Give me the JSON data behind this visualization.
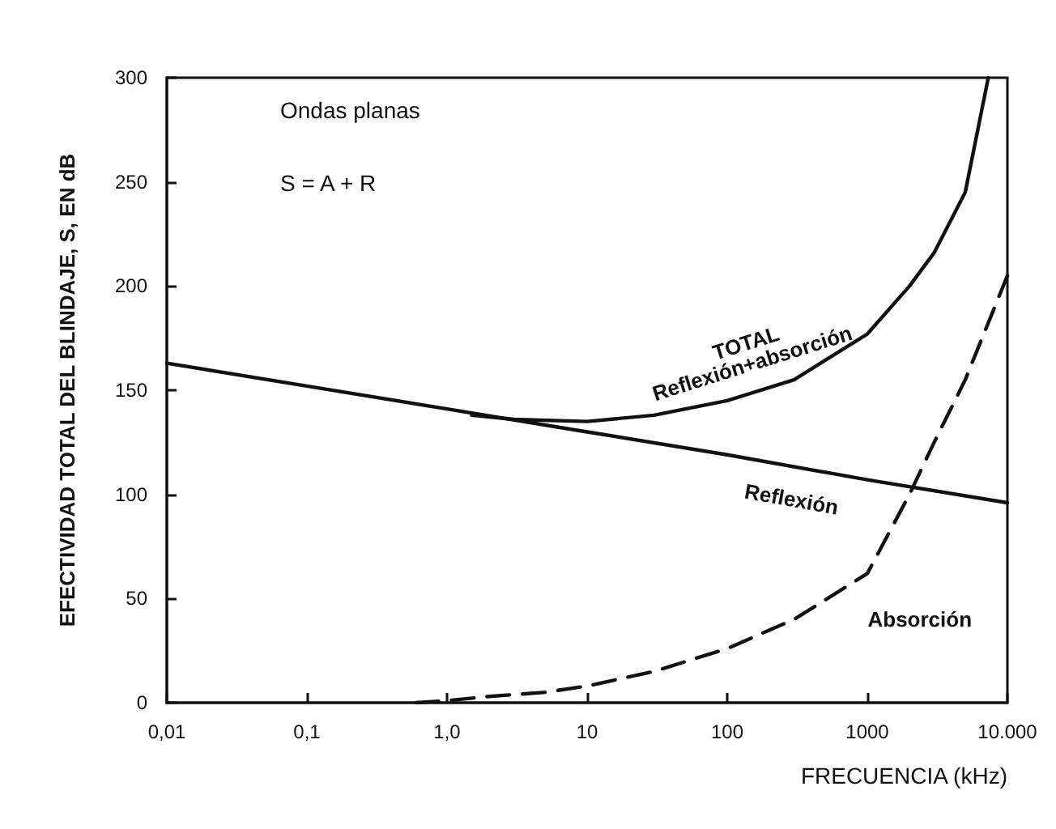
{
  "chart_data": {
    "type": "line",
    "xlabel": "FRECUENCIA (kHz)",
    "ylabel": "EFECTIVIDAD TOTAL DEL BLINDAJE, S, EN dB",
    "log": "x",
    "grid": false,
    "legend": false,
    "marker": "none",
    "xlim": [
      0.01,
      10000
    ],
    "xticks": [
      {
        "value": 0.01,
        "label": "0,01"
      },
      {
        "value": 0.1,
        "label": "0,1"
      },
      {
        "value": 1,
        "label": "1,0"
      },
      {
        "value": 10,
        "label": "10"
      },
      {
        "value": 100,
        "label": "100"
      },
      {
        "value": 1000,
        "label": "1000"
      },
      {
        "value": 10000,
        "label": "10.000"
      }
    ],
    "ylim": [
      0,
      300
    ],
    "yticks": [
      0,
      50,
      100,
      150,
      200,
      250,
      300
    ],
    "series": [
      {
        "name": "Reflexión",
        "color": "#111111",
        "line_style": "solid",
        "x": [
          0.01,
          0.1,
          1,
          10,
          100,
          1000,
          10000
        ],
        "values": [
          163,
          152,
          141,
          130,
          119,
          107,
          96
        ]
      },
      {
        "name": "TOTAL\nReflexión+absorción",
        "color": "#111111",
        "line_style": "solid",
        "x": [
          1.5,
          3,
          10,
          30,
          100,
          300,
          1000,
          2000,
          3000,
          5000,
          7300
        ],
        "values": [
          138,
          136,
          135,
          138,
          145,
          155,
          177,
          200,
          216,
          245,
          300
        ]
      },
      {
        "name": "Absorción",
        "color": "#111111",
        "line_style": "dashed",
        "x": [
          0.6,
          1,
          2,
          5,
          10,
          30,
          100,
          300,
          1000,
          2000,
          3000,
          5000,
          10000
        ],
        "values": [
          0,
          1,
          3,
          5,
          8,
          15,
          26,
          40,
          62,
          100,
          125,
          155,
          205
        ]
      }
    ],
    "annotations": [
      "Ondas planas",
      "S = A + R"
    ]
  }
}
